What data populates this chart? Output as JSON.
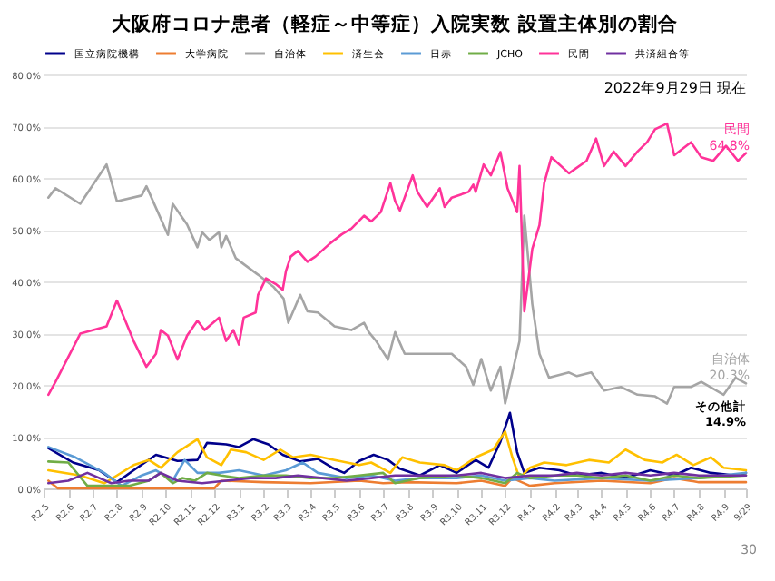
{
  "chart_data": {
    "type": "line",
    "title": "大阪府コロナ患者（軽症～中等症）入院実数 設置主体別の割合",
    "xlim": [
      "2020-05-01",
      "2022-09-29"
    ],
    "xticks": [
      {
        "value": "2020-05",
        "label": "R2.5"
      },
      {
        "value": "2020-06",
        "label": "R2.6"
      },
      {
        "value": "2020-07",
        "label": "R2.7"
      },
      {
        "value": "2020-08",
        "label": "R2.8"
      },
      {
        "value": "2020-09",
        "label": "R2.9"
      },
      {
        "value": "2020-10",
        "label": "R2.10"
      },
      {
        "value": "2020-11",
        "label": "R2.11"
      },
      {
        "value": "2020-12",
        "label": "R2.12"
      },
      {
        "value": "2021-01",
        "label": "R3.1"
      },
      {
        "value": "2021-02",
        "label": "R3.2"
      },
      {
        "value": "2021-03",
        "label": "R3.3"
      },
      {
        "value": "2021-04",
        "label": "R3.4"
      },
      {
        "value": "2021-05",
        "label": "R3.5"
      },
      {
        "value": "2021-06",
        "label": "R3.6"
      },
      {
        "value": "2021-07",
        "label": "R3.7"
      },
      {
        "value": "2021-08",
        "label": "R3.8"
      },
      {
        "value": "2021-09",
        "label": "R3.9"
      },
      {
        "value": "2021-10",
        "label": "R3.10"
      },
      {
        "value": "2021-11",
        "label": "R3.11"
      },
      {
        "value": "2021-12",
        "label": "R3.12"
      },
      {
        "value": "2022-01",
        "label": "R4.1"
      },
      {
        "value": "2022-02",
        "label": "R4.2"
      },
      {
        "value": "2022-03",
        "label": "R4.3"
      },
      {
        "value": "2022-04",
        "label": "R4.4"
      },
      {
        "value": "2022-05",
        "label": "R4.5"
      },
      {
        "value": "2022-06",
        "label": "R4.6"
      },
      {
        "value": "2022-07",
        "label": "R4.7"
      },
      {
        "value": "2022-08",
        "label": "R4.8"
      },
      {
        "value": "2022-09",
        "label": "R4.9"
      },
      {
        "value": "2022-09-29",
        "label": "9/29"
      }
    ],
    "ylim": [
      0,
      80
    ],
    "yticks": [
      {
        "value": 0,
        "label": "0.0%"
      },
      {
        "value": 10,
        "label": "10.0%"
      },
      {
        "value": 20,
        "label": "20.0%"
      },
      {
        "value": 30,
        "label": "30.0%"
      },
      {
        "value": 40,
        "label": "40.0%"
      },
      {
        "value": 50,
        "label": "50.0%"
      },
      {
        "value": 60,
        "label": "60.0%"
      },
      {
        "value": 70,
        "label": "70.0%"
      },
      {
        "value": 80,
        "label": "80.0%"
      }
    ],
    "grid": "y",
    "legend": "top",
    "line_style": "solid",
    "annotations": [
      "2022年9月29日 現在",
      "その他計\n14.9%",
      "30",
      {
        "text": "民間\n64.8%",
        "x": "2022-09-29",
        "y": 64.8
      },
      {
        "text": "自治体\n20.3%",
        "x": "2022-09-29",
        "y": 20.3
      }
    ],
    "series": [
      {
        "name": "国立病院機構",
        "color": "#00008b",
        "x": [
          "2020-05-07",
          "2020-06-07",
          "2020-07-10",
          "2020-08-01",
          "2020-08-22",
          "2020-09-19",
          "2020-10-16",
          "2020-11-10",
          "2020-11-22",
          "2020-12-16",
          "2021-01-01",
          "2021-01-19",
          "2021-02-07",
          "2021-02-25",
          "2021-03-19",
          "2021-04-10",
          "2021-04-28",
          "2021-05-13",
          "2021-06-01",
          "2021-06-19",
          "2021-07-07",
          "2021-07-22",
          "2021-08-16",
          "2021-09-10",
          "2021-10-01",
          "2021-10-25",
          "2021-11-10",
          "2021-11-25",
          "2021-12-07",
          "2021-12-16",
          "2021-12-25",
          "2022-01-13",
          "2022-02-07",
          "2022-03-01",
          "2022-04-01",
          "2022-05-01",
          "2022-06-01",
          "2022-07-01",
          "2022-07-22",
          "2022-08-16",
          "2022-09-16",
          "2022-09-29"
        ],
        "values": [
          7.8,
          5,
          3.5,
          1.2,
          3.5,
          6.5,
          5.3,
          5.5,
          8.8,
          8.5,
          8,
          9.5,
          8.5,
          6.5,
          5.2,
          5.7,
          4,
          3,
          5.3,
          6.5,
          5.5,
          3.8,
          2.5,
          4.5,
          3,
          5.5,
          4,
          9,
          14.6,
          7,
          3,
          4,
          3.5,
          2.5,
          3,
          2,
          3.5,
          2.5,
          4,
          3,
          2.5,
          3
        ]
      },
      {
        "name": "大学病院",
        "color": "#ed7d31",
        "x": [
          "2020-05-07",
          "2020-05-19",
          "2020-08-01",
          "2020-12-01",
          "2020-12-10",
          "2021-02-01",
          "2021-04-01",
          "2021-06-01",
          "2021-07-01",
          "2021-08-01",
          "2021-10-01",
          "2021-11-01",
          "2021-12-01",
          "2021-12-10",
          "2022-01-01",
          "2022-02-01",
          "2022-04-01",
          "2022-06-01",
          "2022-07-01",
          "2022-08-01",
          "2022-09-29"
        ],
        "values": [
          1.5,
          0,
          0,
          0,
          1.5,
          1.2,
          1,
          1.5,
          1,
          1.2,
          1,
          1.5,
          0.5,
          2,
          0.5,
          1,
          1.5,
          1,
          2,
          1.2,
          1.2
        ]
      },
      {
        "name": "自治体",
        "color": "#a5a5a5",
        "x": [
          "2020-05-07",
          "2020-05-16",
          "2020-06-16",
          "2020-07-19",
          "2020-08-01",
          "2020-09-01",
          "2020-09-07",
          "2020-10-04",
          "2020-10-10",
          "2020-10-28",
          "2020-11-10",
          "2020-11-16",
          "2020-11-25",
          "2020-12-07",
          "2020-12-10",
          "2020-12-16",
          "2020-12-28",
          "2021-01-10",
          "2021-01-25",
          "2021-02-13",
          "2021-02-26",
          "2021-03-04",
          "2021-03-19",
          "2021-03-28",
          "2021-04-10",
          "2021-05-01",
          "2021-05-22",
          "2021-06-07",
          "2021-06-13",
          "2021-06-22",
          "2021-07-07",
          "2021-07-16",
          "2021-07-28",
          "2021-08-19",
          "2021-09-25",
          "2021-10-13",
          "2021-10-22",
          "2021-11-01",
          "2021-11-13",
          "2021-11-25",
          "2021-12-01",
          "2021-12-10",
          "2021-12-19",
          "2021-12-25",
          "2022-01-04",
          "2022-01-13",
          "2022-01-25",
          "2022-02-19",
          "2022-03-01",
          "2022-03-19",
          "2022-04-04",
          "2022-04-25",
          "2022-05-16",
          "2022-06-07",
          "2022-06-22",
          "2022-07-01",
          "2022-07-22",
          "2022-08-04",
          "2022-09-01",
          "2022-09-16",
          "2022-09-29"
        ],
        "values": [
          56.2,
          58,
          55,
          62.6,
          55.5,
          56.6,
          58.4,
          49,
          55,
          51,
          46.6,
          49.5,
          48,
          49.5,
          46.6,
          48.8,
          44.5,
          43,
          41.3,
          39,
          36.7,
          32,
          37.4,
          34.2,
          34,
          31.3,
          30.6,
          32,
          30.2,
          28.5,
          24.9,
          30.2,
          26,
          26,
          26,
          23.5,
          20,
          25,
          18.9,
          23.5,
          16.4,
          22.4,
          28.5,
          52.7,
          35.6,
          26,
          21.4,
          22.4,
          21.7,
          22.4,
          18.9,
          19.6,
          18.1,
          17.8,
          16.4,
          19.6,
          19.6,
          20.6,
          18.1,
          21.4,
          20.3
        ]
      },
      {
        "name": "済生会",
        "color": "#ffc000",
        "x": [
          "2020-05-07",
          "2020-06-16",
          "2020-07-16",
          "2020-08-01",
          "2020-08-22",
          "2020-09-10",
          "2020-09-25",
          "2020-10-16",
          "2020-11-10",
          "2020-11-22",
          "2020-12-10",
          "2020-12-22",
          "2021-01-10",
          "2021-02-01",
          "2021-02-22",
          "2021-03-10",
          "2021-04-01",
          "2021-05-01",
          "2021-06-01",
          "2021-06-16",
          "2021-07-10",
          "2021-07-25",
          "2021-08-16",
          "2021-09-16",
          "2021-10-01",
          "2021-10-25",
          "2021-11-16",
          "2021-12-01",
          "2021-12-10",
          "2021-12-19",
          "2022-01-01",
          "2022-01-19",
          "2022-02-16",
          "2022-03-16",
          "2022-04-10",
          "2022-05-01",
          "2022-05-25",
          "2022-06-16",
          "2022-07-04",
          "2022-07-25",
          "2022-08-16",
          "2022-09-01",
          "2022-09-29"
        ],
        "values": [
          3.5,
          2.5,
          1,
          2.5,
          4.5,
          5.5,
          4,
          7,
          9.5,
          6,
          4.5,
          7.5,
          7,
          5.5,
          7.5,
          6,
          6.5,
          5.5,
          4.5,
          5,
          3,
          6,
          5,
          4.5,
          3.5,
          6,
          7.5,
          11,
          6,
          2,
          4,
          5,
          4.5,
          5.5,
          5,
          7.5,
          5.5,
          5,
          6.5,
          4.5,
          6,
          4,
          3.5
        ]
      },
      {
        "name": "日赤",
        "color": "#5b9bd5",
        "x": [
          "2020-05-07",
          "2020-06-10",
          "2020-07-16",
          "2020-08-07",
          "2020-09-01",
          "2020-09-19",
          "2020-10-10",
          "2020-10-25",
          "2020-11-10",
          "2020-12-07",
          "2021-01-01",
          "2021-02-01",
          "2021-03-01",
          "2021-03-22",
          "2021-04-10",
          "2021-05-16",
          "2021-06-16",
          "2021-07-16",
          "2021-08-16",
          "2021-10-01",
          "2021-11-01",
          "2021-12-01",
          "2022-01-01",
          "2022-02-01",
          "2022-04-01",
          "2022-06-01",
          "2022-08-01",
          "2022-09-29"
        ],
        "values": [
          8,
          6,
          3,
          0.5,
          2.5,
          3.5,
          1.5,
          5.5,
          3,
          3,
          3.5,
          2.5,
          3.5,
          5,
          3,
          2,
          2.5,
          1.5,
          2,
          2,
          2.5,
          1.5,
          2,
          1.5,
          2,
          1.5,
          2,
          3
        ]
      },
      {
        "name": "JCHO",
        "color": "#70ad47",
        "x": [
          "2020-05-07",
          "2020-06-01",
          "2020-06-25",
          "2020-08-16",
          "2020-09-10",
          "2020-09-25",
          "2020-10-10",
          "2020-10-22",
          "2020-11-07",
          "2020-11-22",
          "2020-12-10",
          "2021-01-01",
          "2021-02-01",
          "2021-03-01",
          "2021-04-01",
          "2021-05-01",
          "2021-06-01",
          "2021-07-01",
          "2021-07-16",
          "2021-08-16",
          "2021-10-01",
          "2021-11-01",
          "2021-12-01",
          "2021-12-16",
          "2022-01-01",
          "2022-02-01",
          "2022-03-01",
          "2022-04-01",
          "2022-05-01",
          "2022-06-01",
          "2022-07-01",
          "2022-08-01",
          "2022-09-29"
        ],
        "values": [
          5.2,
          5,
          0.5,
          0.5,
          1.5,
          3,
          1,
          2,
          1.5,
          3,
          2.5,
          2,
          2.5,
          2.5,
          2,
          2,
          2.5,
          3,
          1,
          2,
          2.5,
          2,
          1,
          3,
          2,
          2.5,
          2.5,
          2,
          2.5,
          1.5,
          2.5,
          2,
          2.5
        ]
      },
      {
        "name": "民間",
        "color": "#ff3399",
        "x": [
          "2020-05-07",
          "2020-05-16",
          "2020-06-16",
          "2020-07-19",
          "2020-08-01",
          "2020-08-22",
          "2020-09-07",
          "2020-09-19",
          "2020-09-25",
          "2020-10-04",
          "2020-10-16",
          "2020-10-28",
          "2020-11-10",
          "2020-11-19",
          "2020-12-07",
          "2020-12-16",
          "2020-12-25",
          "2021-01-01",
          "2021-01-07",
          "2021-01-22",
          "2021-01-25",
          "2021-02-04",
          "2021-02-16",
          "2021-02-25",
          "2021-03-01",
          "2021-03-07",
          "2021-03-16",
          "2021-03-28",
          "2021-04-07",
          "2021-04-25",
          "2021-05-10",
          "2021-05-22",
          "2021-06-07",
          "2021-06-16",
          "2021-06-28",
          "2021-07-10",
          "2021-07-16",
          "2021-07-22",
          "2021-08-07",
          "2021-08-13",
          "2021-08-25",
          "2021-09-10",
          "2021-09-16",
          "2021-09-25",
          "2021-10-16",
          "2021-10-22",
          "2021-10-25",
          "2021-11-04",
          "2021-11-13",
          "2021-11-25",
          "2021-12-04",
          "2021-12-16",
          "2021-12-19",
          "2021-12-25",
          "2022-01-04",
          "2022-01-13",
          "2022-01-19",
          "2022-01-28",
          "2022-02-19",
          "2022-03-13",
          "2022-03-25",
          "2022-04-04",
          "2022-04-16",
          "2022-05-01",
          "2022-05-16",
          "2022-05-28",
          "2022-06-07",
          "2022-06-22",
          "2022-07-01",
          "2022-07-22",
          "2022-08-04",
          "2022-08-19",
          "2022-09-04",
          "2022-09-19",
          "2022-09-29"
        ],
        "values": [
          18.1,
          20.6,
          29.9,
          31.3,
          36.3,
          28.5,
          23.5,
          26,
          30.6,
          29.5,
          24.9,
          29.5,
          32.4,
          30.6,
          33,
          28.5,
          30.6,
          27.8,
          33,
          34,
          37.4,
          40.6,
          39.5,
          38.4,
          42,
          44.8,
          45.9,
          43.8,
          44.8,
          47.3,
          49.1,
          50.2,
          52.7,
          51.6,
          53.4,
          59,
          55.5,
          53.7,
          60.5,
          57.3,
          54.4,
          58,
          54.4,
          56.2,
          57.3,
          58.7,
          57.3,
          62.6,
          60.5,
          65,
          58,
          53.4,
          62.3,
          34.2,
          46.3,
          50.9,
          59,
          64,
          60.9,
          63.3,
          67.6,
          62.3,
          65.1,
          62.3,
          65.1,
          66.9,
          69.4,
          70.5,
          64.4,
          66.9,
          64,
          63.3,
          66.2,
          63.3,
          64.8
        ]
      },
      {
        "name": "共済組合等",
        "color": "#7030a0",
        "x": [
          "2020-05-07",
          "2020-06-01",
          "2020-06-25",
          "2020-07-25",
          "2020-08-16",
          "2020-09-10",
          "2020-09-25",
          "2020-10-16",
          "2020-11-16",
          "2020-12-16",
          "2021-01-16",
          "2021-02-16",
          "2021-03-16",
          "2021-04-16",
          "2021-05-16",
          "2021-06-16",
          "2021-07-16",
          "2021-08-16",
          "2021-10-01",
          "2021-11-01",
          "2021-12-01",
          "2022-01-01",
          "2022-02-01",
          "2022-03-01",
          "2022-04-01",
          "2022-05-01",
          "2022-06-01",
          "2022-07-01",
          "2022-08-01",
          "2022-09-29"
        ],
        "values": [
          1,
          1.5,
          3,
          1,
          1.5,
          1.5,
          3,
          1.5,
          1,
          1.5,
          2,
          2,
          2.5,
          2,
          1.5,
          2,
          2.5,
          2.5,
          2.5,
          3,
          2,
          2.5,
          2.5,
          3,
          2.5,
          3,
          2.5,
          3,
          2.5,
          2.5
        ]
      }
    ]
  }
}
